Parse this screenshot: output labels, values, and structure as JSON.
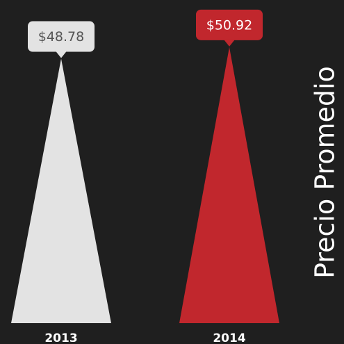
{
  "chart_data": {
    "type": "triangle-bar",
    "ylabel": "Precio Promedio",
    "categories": [
      "2013",
      "2014"
    ],
    "values": [
      48.78,
      50.92
    ],
    "value_labels": [
      "$48.78",
      "$50.92"
    ],
    "colors": [
      "#e3e3e3",
      "#c1272d"
    ]
  }
}
